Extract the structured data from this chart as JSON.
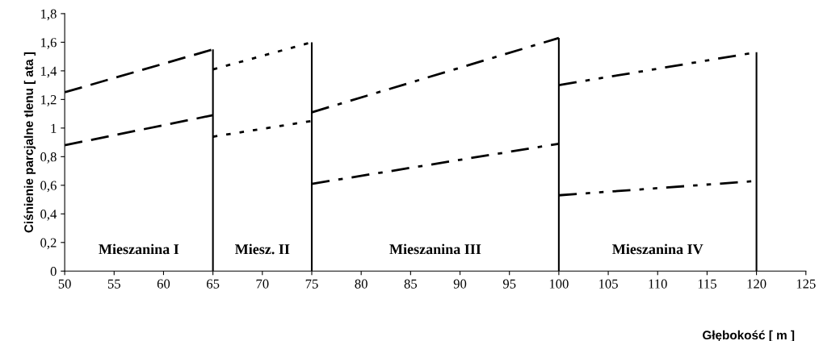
{
  "chart_data": {
    "type": "line",
    "xlabel": "Głębokość [ m ]",
    "ylabel": "Ciśnienie parcjalne tlenu [ ata ]",
    "xlim": [
      50,
      125
    ],
    "xticks": [
      50,
      55,
      60,
      65,
      70,
      75,
      80,
      85,
      90,
      95,
      100,
      105,
      110,
      115,
      120,
      125
    ],
    "ylim": [
      0,
      1.8
    ],
    "yticks": [
      0,
      {
        "value": 0.2,
        "label": "0,2"
      },
      {
        "value": 0.4,
        "label": "0,4"
      },
      {
        "value": 0.6,
        "label": "0,6"
      },
      {
        "value": 0.8,
        "label": "0,8"
      },
      1,
      {
        "value": 1.2,
        "label": "1,2"
      },
      {
        "value": 1.4,
        "label": "1,4"
      },
      {
        "value": 1.6,
        "label": "1,6"
      },
      {
        "value": 1.8,
        "label": "1,8"
      }
    ],
    "grid": false,
    "legend": false,
    "marker": "none",
    "series": [
      {
        "color": "#000000",
        "line_style": "dashed",
        "x": [
          50,
          65
        ],
        "values": [
          1.25,
          1.55
        ]
      },
      {
        "color": "#000000",
        "line_style": "dashed",
        "x": [
          50,
          65
        ],
        "values": [
          0.88,
          1.09
        ]
      },
      {
        "color": "#000000",
        "line_style": "dotted",
        "x": [
          65,
          75
        ],
        "values": [
          1.41,
          1.6
        ]
      },
      {
        "color": "#000000",
        "line_style": "dotted",
        "x": [
          65,
          75
        ],
        "values": [
          0.94,
          1.05
        ]
      },
      {
        "color": "#000000",
        "line_style": "dashdot",
        "x": [
          75,
          100
        ],
        "values": [
          1.11,
          1.63
        ]
      },
      {
        "color": "#000000",
        "line_style": "dashdot",
        "x": [
          75,
          100
        ],
        "values": [
          0.61,
          0.89
        ]
      },
      {
        "color": "#000000",
        "line_style": "dashdotdot",
        "x": [
          100,
          120
        ],
        "values": [
          1.3,
          1.53
        ]
      },
      {
        "color": "#000000",
        "line_style": "dashdotdot",
        "x": [
          100,
          120
        ],
        "values": [
          0.53,
          0.63
        ]
      }
    ],
    "ref_lines": [
      {
        "axis": "x",
        "value": 65,
        "color": "#000000",
        "line_style": "solid"
      },
      {
        "axis": "x",
        "value": 75,
        "color": "#000000",
        "line_style": "solid"
      },
      {
        "axis": "x",
        "value": 100,
        "color": "#000000",
        "line_style": "solid"
      },
      {
        "axis": "x",
        "value": 120,
        "color": "#000000",
        "line_style": "solid"
      }
    ],
    "annotations": [
      "Mieszanina I",
      "Miesz. II",
      "Mieszanina III",
      "Mieszanina IV"
    ]
  }
}
